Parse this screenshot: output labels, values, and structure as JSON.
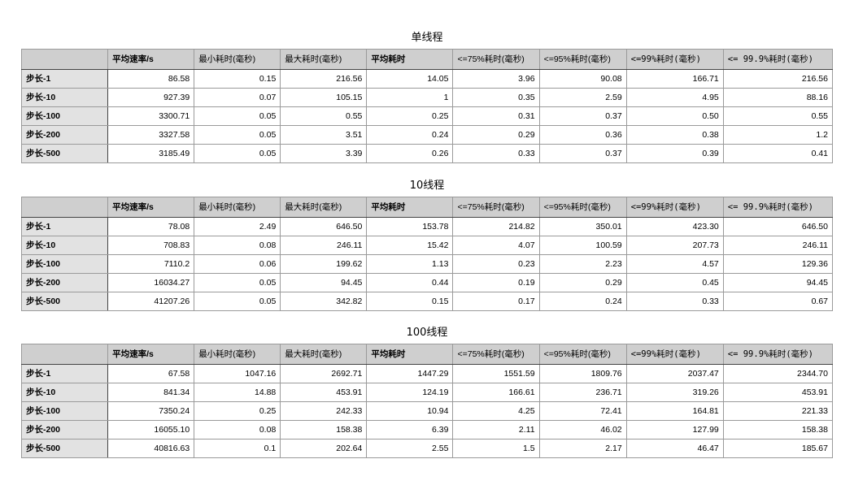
{
  "headers": [
    "平均速率/s",
    "最小耗时(毫秒)",
    "最大耗时(毫秒)",
    "平均耗时",
    "<=75%耗时(毫秒)",
    "<=95%耗时(毫秒)",
    "<=99%耗时(毫秒)",
    "<= 99.9%耗时(毫秒)"
  ],
  "sections": [
    {
      "title": "单线程",
      "rows": [
        {
          "label": "步长-1",
          "values": [
            "86.58",
            "0.15",
            "216.56",
            "14.05",
            "3.96",
            "90.08",
            "166.71",
            "216.56"
          ]
        },
        {
          "label": "步长-10",
          "values": [
            "927.39",
            "0.07",
            "105.15",
            "1",
            "0.35",
            "2.59",
            "4.95",
            "88.16"
          ]
        },
        {
          "label": "步长-100",
          "values": [
            "3300.71",
            "0.05",
            "0.55",
            "0.25",
            "0.31",
            "0.37",
            "0.50",
            "0.55"
          ]
        },
        {
          "label": "步长-200",
          "values": [
            "3327.58",
            "0.05",
            "3.51",
            "0.24",
            "0.29",
            "0.36",
            "0.38",
            "1.2"
          ]
        },
        {
          "label": "步长-500",
          "values": [
            "3185.49",
            "0.05",
            "3.39",
            "0.26",
            "0.33",
            "0.37",
            "0.39",
            "0.41"
          ]
        }
      ]
    },
    {
      "title": "10线程",
      "rows": [
        {
          "label": "步长-1",
          "values": [
            "78.08",
            "2.49",
            "646.50",
            "153.78",
            "214.82",
            "350.01",
            "423.30",
            "646.50"
          ]
        },
        {
          "label": "步长-10",
          "values": [
            "708.83",
            "0.08",
            "246.11",
            "15.42",
            "4.07",
            "100.59",
            "207.73",
            "246.11"
          ]
        },
        {
          "label": "步长-100",
          "values": [
            "7110.2",
            "0.06",
            "199.62",
            "1.13",
            "0.23",
            "2.23",
            "4.57",
            "129.36"
          ]
        },
        {
          "label": "步长-200",
          "values": [
            "16034.27",
            "0.05",
            "94.45",
            "0.44",
            "0.19",
            "0.29",
            "0.45",
            "94.45"
          ]
        },
        {
          "label": "步长-500",
          "values": [
            "41207.26",
            "0.05",
            "342.82",
            "0.15",
            "0.17",
            "0.24",
            "0.33",
            "0.67"
          ]
        }
      ]
    },
    {
      "title": "100线程",
      "rows": [
        {
          "label": "步长-1",
          "values": [
            "67.58",
            "1047.16",
            "2692.71",
            "1447.29",
            "1551.59",
            "1809.76",
            "2037.47",
            "2344.70"
          ]
        },
        {
          "label": "步长-10",
          "values": [
            "841.34",
            "14.88",
            "453.91",
            "124.19",
            "166.61",
            "236.71",
            "319.26",
            "453.91"
          ]
        },
        {
          "label": "步长-100",
          "values": [
            "7350.24",
            "0.25",
            "242.33",
            "10.94",
            "4.25",
            "72.41",
            "164.81",
            "221.33"
          ]
        },
        {
          "label": "步长-200",
          "values": [
            "16055.10",
            "0.08",
            "158.38",
            "6.39",
            "2.11",
            "46.02",
            "127.99",
            "158.38"
          ]
        },
        {
          "label": "步长-500",
          "values": [
            "40816.63",
            "0.1",
            "202.64",
            "2.55",
            "1.5",
            "2.17",
            "46.47",
            "185.67"
          ]
        }
      ]
    }
  ]
}
